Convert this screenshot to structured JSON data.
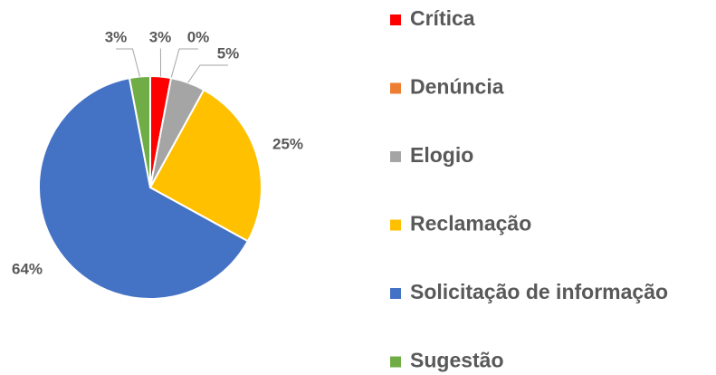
{
  "chart_data": {
    "type": "pie",
    "categories": [
      "Crítica",
      "Denúncia",
      "Elogio",
      "Reclamação",
      "Solicitação de informação",
      "Sugestão"
    ],
    "values": [
      3,
      0,
      5,
      25,
      64,
      3
    ],
    "value_labels": [
      "3%",
      "0%",
      "5%",
      "25%",
      "64%",
      "3%"
    ],
    "colors": [
      "#ff0000",
      "#ed7d31",
      "#a5a5a5",
      "#ffc000",
      "#4472c4",
      "#70ad47"
    ],
    "legend": "right"
  }
}
